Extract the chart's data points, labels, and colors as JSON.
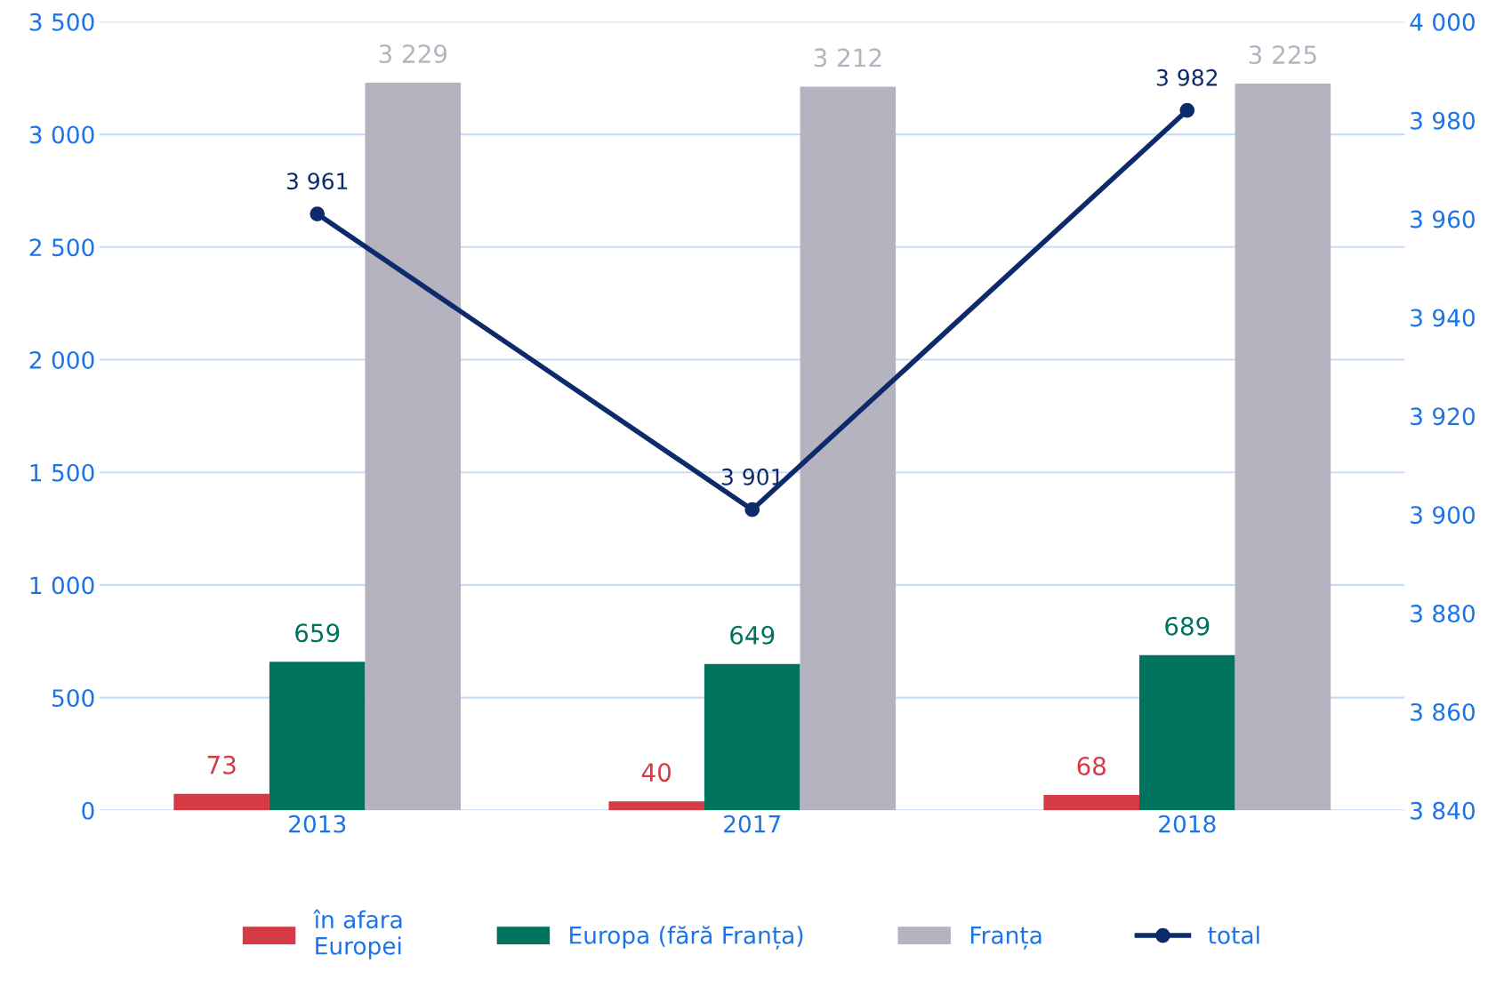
{
  "chart_data": {
    "type": "bar",
    "categories": [
      "2013",
      "2017",
      "2018"
    ],
    "series": [
      {
        "name": "în afara\nEuropei",
        "color": "#d63a44",
        "values": [
          73,
          40,
          68
        ]
      },
      {
        "name": "Europa (fără Franța)",
        "color": "#00735f",
        "values": [
          659,
          649,
          689
        ]
      },
      {
        "name": "Franța",
        "color": "#b5b3bf",
        "values": [
          3229,
          3212,
          3225
        ]
      },
      {
        "name": "total",
        "type": "line",
        "axis": "y2",
        "color": "#0d2a6b",
        "values": [
          3961,
          3901,
          3982
        ],
        "marker": "circle"
      }
    ],
    "ylim": [
      0,
      3500
    ],
    "yticks": [
      0,
      500,
      {
        "value": 1000,
        "label": "1 000"
      },
      {
        "value": 1500,
        "label": "1 500"
      },
      {
        "value": 2000,
        "label": "2 000"
      },
      {
        "value": 2500,
        "label": "2 500"
      },
      {
        "value": 3000,
        "label": "3 000"
      },
      {
        "value": 3500,
        "label": "3 500"
      }
    ],
    "y2lim": [
      3840,
      4000
    ],
    "y2ticks": [
      {
        "value": 3840,
        "label": "3 840"
      },
      {
        "value": 3860,
        "label": "3 860"
      },
      {
        "value": 3880,
        "label": "3 880"
      },
      {
        "value": 3900,
        "label": "3 900"
      },
      {
        "value": 3920,
        "label": "3 920"
      },
      {
        "value": 3940,
        "label": "3 940"
      },
      {
        "value": 3960,
        "label": "3 960"
      },
      {
        "value": 3980,
        "label": "3 980"
      },
      {
        "value": 4000,
        "label": "4 000"
      }
    ],
    "grid": "y",
    "legend": "bottom",
    "data_labels": true
  }
}
